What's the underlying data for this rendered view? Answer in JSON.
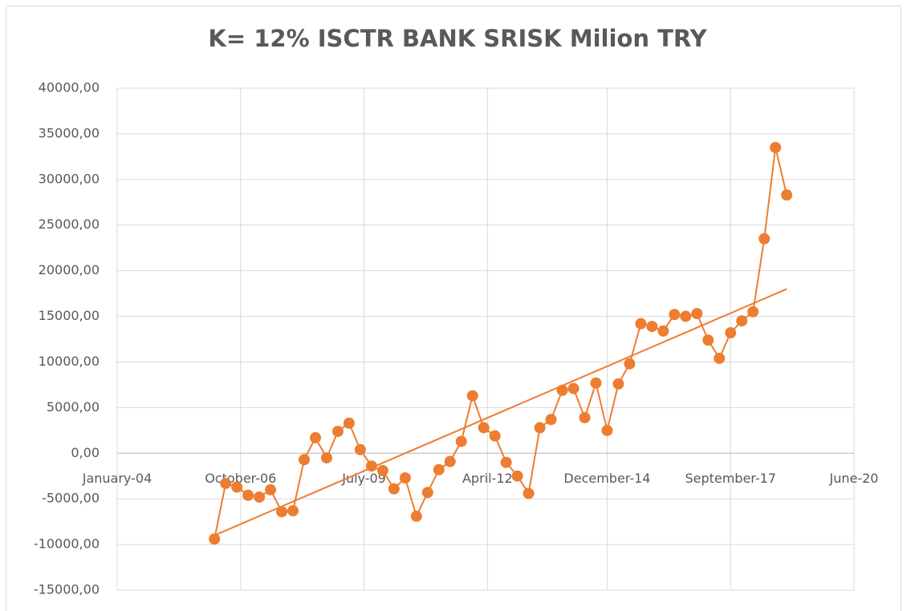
{
  "chart_data": {
    "type": "line",
    "title": "K= 12%  ISCTR BANK SRISK Milion TRY",
    "x": [
      "2006-03",
      "2006-06",
      "2006-09",
      "2006-12",
      "2007-03",
      "2007-06",
      "2007-09",
      "2007-12",
      "2008-03",
      "2008-06",
      "2008-09",
      "2008-12",
      "2009-03",
      "2009-06",
      "2009-09",
      "2009-12",
      "2010-03",
      "2010-06",
      "2010-09",
      "2010-12",
      "2011-03",
      "2011-06",
      "2011-09",
      "2011-12",
      "2012-03",
      "2012-06",
      "2012-09",
      "2012-12",
      "2013-03",
      "2013-06",
      "2013-09",
      "2013-12",
      "2014-03",
      "2014-06",
      "2014-09",
      "2014-12",
      "2015-03",
      "2015-06",
      "2015-09",
      "2015-12",
      "2016-03",
      "2016-06",
      "2016-09",
      "2016-12",
      "2017-03",
      "2017-06",
      "2017-09",
      "2017-12",
      "2018-03",
      "2018-06",
      "2018-09",
      "2018-12"
    ],
    "series": [
      {
        "color": "#ed7d31",
        "values": [
          -9400,
          -3300,
          -3700,
          -4600,
          -4800,
          -4000,
          -6400,
          -6300,
          -700,
          1700,
          -500,
          2400,
          3300,
          400,
          -1400,
          -1900,
          -3900,
          -2700,
          -6900,
          -4300,
          -1800,
          -900,
          1300,
          6300,
          2800,
          1900,
          -1000,
          -2500,
          -4400,
          2800,
          3700,
          6900,
          7100,
          3900,
          7700,
          2500,
          7600,
          9800,
          14200,
          13900,
          13400,
          15200,
          15000,
          15300,
          12400,
          10400,
          13200,
          14500,
          15500,
          23500,
          33500,
          28300
        ]
      }
    ],
    "trendline": {
      "color": "#ed7d31",
      "x": [
        "2006-03",
        "2018-12"
      ],
      "values": [
        -9000,
        18000
      ]
    },
    "xlim": [
      "2004-01",
      "2020-06"
    ],
    "xticks": [
      {
        "value": "2004-01",
        "label": "January-04"
      },
      {
        "value": "2006-10",
        "label": "October-06"
      },
      {
        "value": "2009-07",
        "label": "July-09"
      },
      {
        "value": "2012-04",
        "label": "April-12"
      },
      {
        "value": "2014-12",
        "label": "December-14"
      },
      {
        "value": "2017-09",
        "label": "September-17"
      },
      {
        "value": "2020-06",
        "label": "June-20"
      }
    ],
    "ylim": [
      -15000,
      40000
    ],
    "yticks": [
      {
        "value": -15000,
        "label": "-15000,00"
      },
      {
        "value": -10000,
        "label": "-10000,00"
      },
      {
        "value": -5000,
        "label": "-5000,00"
      },
      {
        "value": 0,
        "label": "0,00"
      },
      {
        "value": 5000,
        "label": "5000,00"
      },
      {
        "value": 10000,
        "label": "10000,00"
      },
      {
        "value": 15000,
        "label": "15000,00"
      },
      {
        "value": 20000,
        "label": "20000,00"
      },
      {
        "value": 25000,
        "label": "25000,00"
      },
      {
        "value": 30000,
        "label": "30000,00"
      },
      {
        "value": 35000,
        "label": "35000,00"
      },
      {
        "value": 40000,
        "label": "40000,00"
      }
    ],
    "grid": true
  }
}
